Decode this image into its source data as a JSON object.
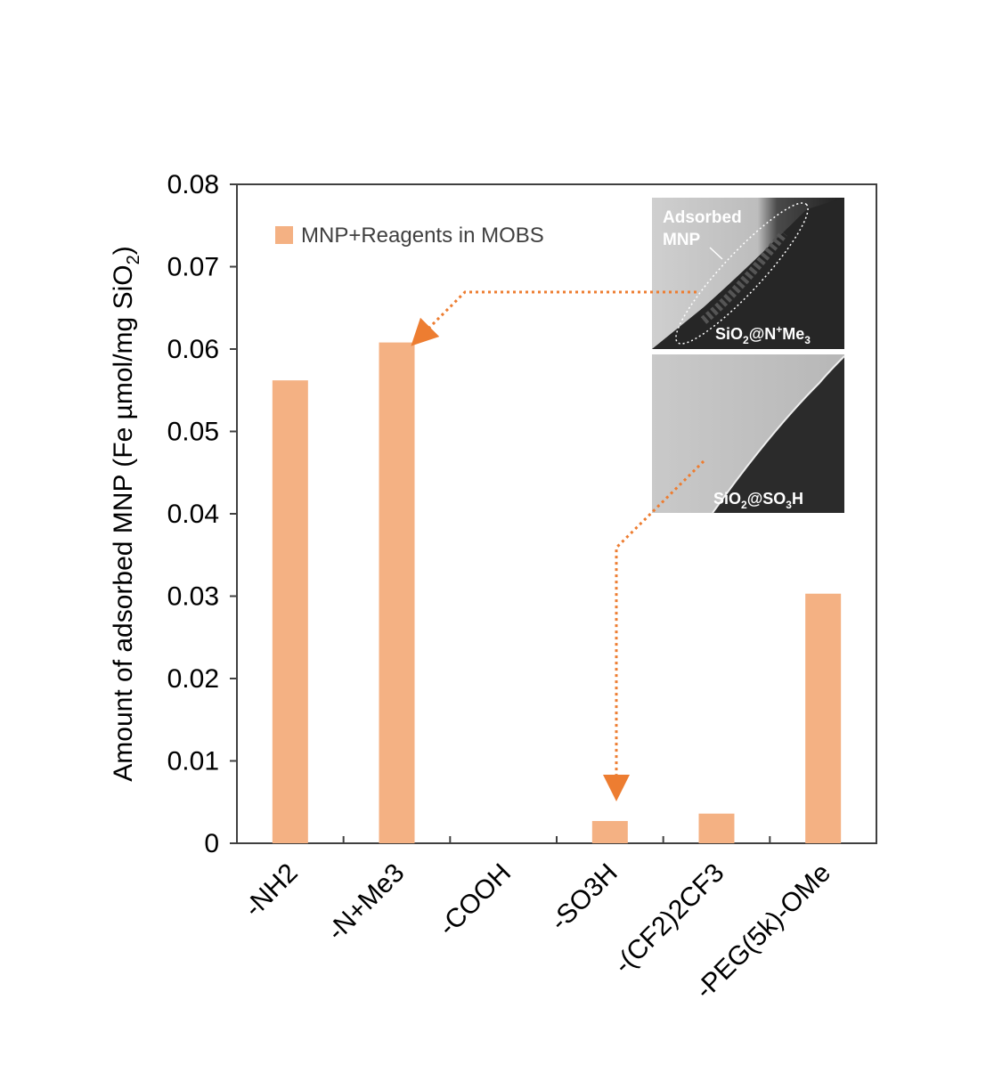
{
  "colors": {
    "bar": "#F4B183",
    "arrow": "#ED7D31",
    "axis": "#404040",
    "text": "#000000",
    "legend_text": "#404040",
    "inset_bg_top": "#c8c8c8",
    "inset_bg_bottom": "#c2c2c2",
    "inset_dark": "#2a2a2a",
    "inset_label": "#ffffff"
  },
  "chart_data": {
    "type": "bar",
    "title": "",
    "xlabel": "",
    "ylabel_main": "Amount of adsorbed MNP (Fe µmol/mg SiO",
    "ylabel_sub": "2",
    "ylabel_end": ")",
    "categories": [
      "-NH2",
      "-N+Me3",
      "-COOH",
      "-SO3H",
      "-(CF2)2CF3",
      "-PEG(5k)-OMe"
    ],
    "series": [
      {
        "name": "MNP+Reagents in MOBS",
        "values": [
          0.0562,
          0.0608,
          0.0,
          0.0027,
          0.0036,
          0.0303
        ]
      }
    ],
    "ylim": [
      0,
      0.08
    ],
    "yticks": [
      "0",
      "0.01",
      "0.02",
      "0.03",
      "0.04",
      "0.05",
      "0.06",
      "0.07",
      "0.08"
    ],
    "grid": false,
    "legend_position": "top-left"
  },
  "insets": {
    "top": {
      "annotation_line1": "Adsorbed",
      "annotation_line2": "MNP",
      "label_prefix": "SiO",
      "label_sub": "2",
      "label_mid": "@N",
      "label_sup": "+",
      "label_mid2": "Me",
      "label_sub2": "3",
      "points_to_category": "-N+Me3"
    },
    "bottom": {
      "label_prefix": "SiO",
      "label_sub": "2",
      "label_mid": "@SO",
      "label_sub2": "3",
      "label_end": "H",
      "points_to_category": "-SO3H"
    }
  }
}
